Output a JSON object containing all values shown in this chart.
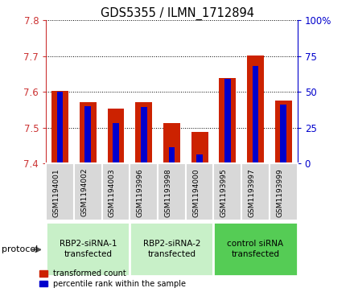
{
  "title": "GDS5355 / ILMN_1712894",
  "samples": [
    "GSM1194001",
    "GSM1194002",
    "GSM1194003",
    "GSM1193996",
    "GSM1193998",
    "GSM1194000",
    "GSM1193995",
    "GSM1193997",
    "GSM1193999"
  ],
  "red_values": [
    7.604,
    7.572,
    7.553,
    7.572,
    7.513,
    7.488,
    7.638,
    7.703,
    7.575
  ],
  "blue_values": [
    7.601,
    7.56,
    7.514,
    7.558,
    7.446,
    7.425,
    7.637,
    7.672,
    7.564
  ],
  "ylim_left": [
    7.4,
    7.8
  ],
  "ylim_right": [
    0,
    100
  ],
  "yticks_left": [
    7.4,
    7.5,
    7.6,
    7.7,
    7.8
  ],
  "yticks_right": [
    0,
    25,
    50,
    75,
    100
  ],
  "groups": [
    {
      "label": "RBP2-siRNA-1\ntransfected",
      "indices": [
        0,
        1,
        2
      ],
      "color": "#c8f0c8"
    },
    {
      "label": "RBP2-siRNA-2\ntransfected",
      "indices": [
        3,
        4,
        5
      ],
      "color": "#c8f0c8"
    },
    {
      "label": "control siRNA\ntransfected",
      "indices": [
        6,
        7,
        8
      ],
      "color": "#55cc55"
    }
  ],
  "bar_bottom": 7.4,
  "bar_width": 0.6,
  "blue_bar_width": 0.22,
  "red_color": "#cc2200",
  "blue_color": "#0000cc",
  "left_axis_color": "#cc3333",
  "right_axis_color": "#0000cc",
  "grid_color": "#000000",
  "legend_red": "transformed count",
  "legend_blue": "percentile rank within the sample",
  "protocol_label": "protocol",
  "sample_bg": "#d8d8d8"
}
